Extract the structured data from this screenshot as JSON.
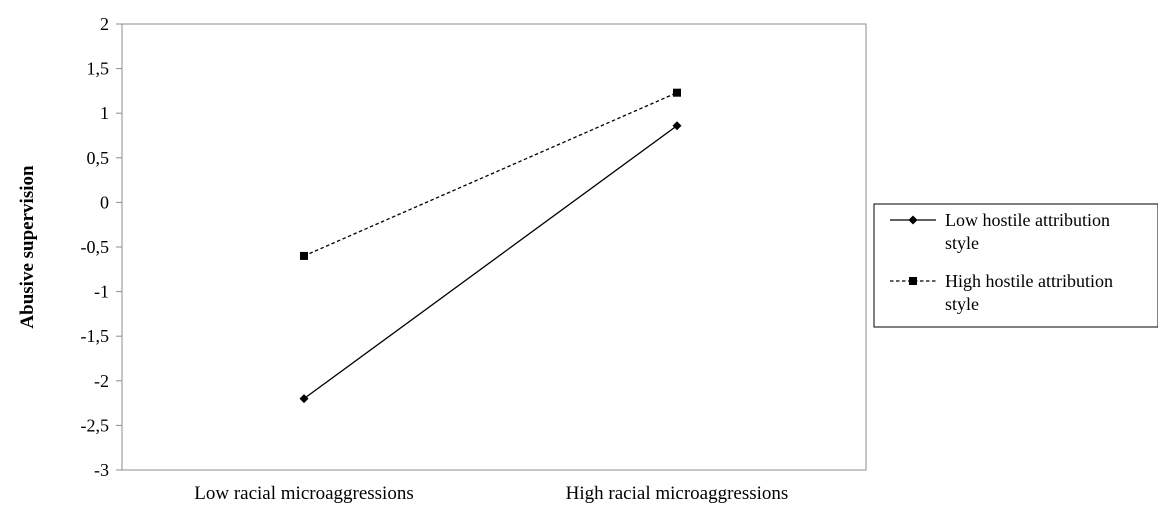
{
  "chart_data": {
    "type": "line",
    "categories": [
      "Low racial microaggressions",
      "High racial microaggressions"
    ],
    "series": [
      {
        "name": "Low hostile attribution style",
        "values": [
          -2.2,
          0.86
        ],
        "marker": "diamond",
        "line": "solid",
        "color": "#000000"
      },
      {
        "name": "High hostile attribution style",
        "values": [
          -0.6,
          1.23
        ],
        "marker": "square",
        "line": "dashed",
        "color": "#000000"
      }
    ],
    "yticks": [
      "2",
      "1,5",
      "1",
      "0,5",
      "0",
      "-0,5",
      "-1",
      "-1,5",
      "-2",
      "-2,5",
      "-3"
    ],
    "ytick_values": [
      2,
      1.5,
      1,
      0.5,
      0,
      -0.5,
      -1,
      -1.5,
      -2,
      -2.5,
      -3
    ],
    "ylim": [
      -3,
      2
    ],
    "xlabel": "",
    "ylabel": "Abusive supervision",
    "grid": false,
    "legend": {
      "position": "right",
      "items": [
        {
          "lines": [
            "Low hostile attribution",
            "style"
          ]
        },
        {
          "lines": [
            "High hostile attribution",
            "style"
          ]
        }
      ]
    }
  }
}
